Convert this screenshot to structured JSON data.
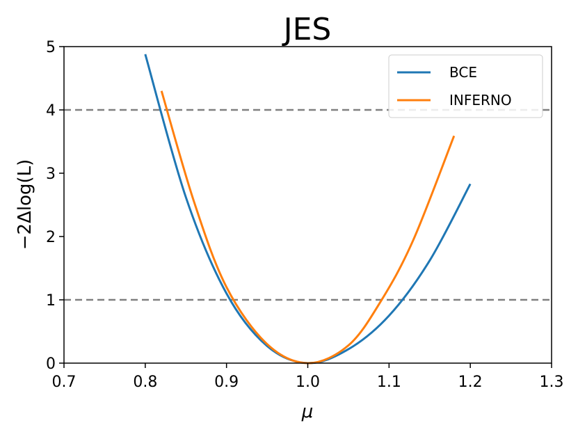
{
  "chart_data": {
    "type": "line",
    "title": "JES",
    "xlabel": "μ",
    "ylabel": "−2Δlog(L)",
    "xlim": [
      0.7,
      1.3
    ],
    "ylim": [
      0,
      5
    ],
    "xticks": [
      "0.7",
      "0.8",
      "0.9",
      "1.0",
      "1.1",
      "1.2",
      "1.3"
    ],
    "yticks": [
      "0",
      "1",
      "2",
      "3",
      "4",
      "5"
    ],
    "grid": false,
    "legend_position": "top-right",
    "reference_lines": [
      {
        "y": 1,
        "style": "dashed",
        "color": "#808080"
      },
      {
        "y": 4,
        "style": "dashed",
        "color": "#808080"
      }
    ],
    "series": [
      {
        "name": "BCE",
        "color": "#1f77b4",
        "x": [
          0.8,
          0.85,
          0.9,
          0.95,
          1.0,
          1.05,
          1.1,
          1.15,
          1.2
        ],
        "y": [
          4.88,
          2.62,
          1.1,
          0.27,
          0.0,
          0.22,
          0.75,
          1.62,
          2.83
        ]
      },
      {
        "name": "INFERNO",
        "color": "#ff7f0e",
        "x": [
          0.82,
          0.86,
          0.9,
          0.95,
          1.0,
          1.05,
          1.09,
          1.13,
          1.18
        ],
        "y": [
          4.3,
          2.55,
          1.2,
          0.3,
          0.0,
          0.28,
          0.98,
          1.95,
          3.59
        ]
      }
    ]
  }
}
